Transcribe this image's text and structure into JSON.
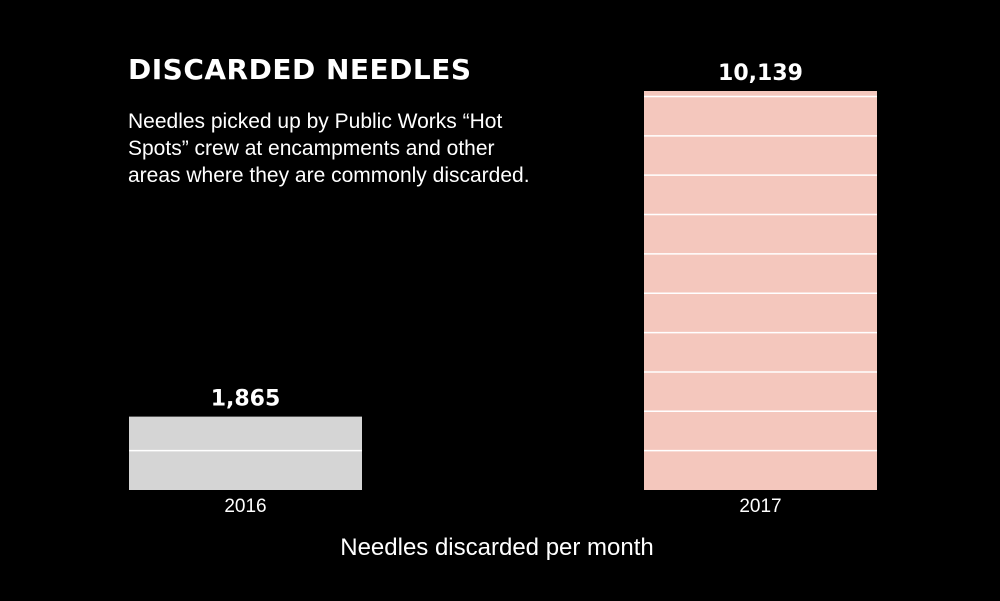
{
  "title": "DISCARDED NEEDLES",
  "subtitle": "Needles picked up by Public Works “Hot Spots” crew at encampments and other areas where they are commonly discarded.",
  "chart_data": {
    "type": "bar",
    "categories": [
      "2016",
      "2017"
    ],
    "values": [
      1865,
      10139
    ],
    "value_labels": [
      "1,865",
      "10,139"
    ],
    "title": "DISCARDED NEEDLES",
    "xlabel": "Needles discarded per month",
    "ylabel": "",
    "ylim": [
      0,
      10139
    ],
    "gridline_step": 1000,
    "grid": "white horizontal lines inside bars",
    "bar_colors": [
      "#d5d5d5",
      "#f4c7bd"
    ],
    "background": "#000000",
    "text_color": "#ffffff"
  }
}
